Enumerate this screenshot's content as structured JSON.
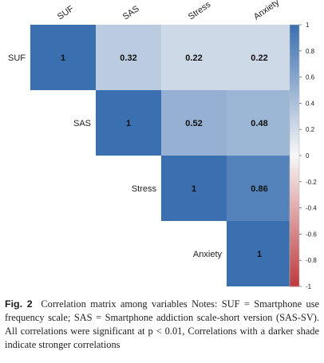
{
  "chart_data": {
    "type": "heatmap",
    "variables": [
      "SUF",
      "SAS",
      "Stress",
      "Anxiety"
    ],
    "layout": "upper-triangle",
    "cells": [
      {
        "row": "SUF",
        "col": "SUF",
        "value": 1,
        "label": "1"
      },
      {
        "row": "SUF",
        "col": "SAS",
        "value": 0.32,
        "label": "0.32"
      },
      {
        "row": "SUF",
        "col": "Stress",
        "value": 0.22,
        "label": "0.22"
      },
      {
        "row": "SUF",
        "col": "Anxiety",
        "value": 0.22,
        "label": "0.22"
      },
      {
        "row": "SAS",
        "col": "SAS",
        "value": 1,
        "label": "1"
      },
      {
        "row": "SAS",
        "col": "Stress",
        "value": 0.52,
        "label": "0.52"
      },
      {
        "row": "SAS",
        "col": "Anxiety",
        "value": 0.48,
        "label": "0.48"
      },
      {
        "row": "Stress",
        "col": "Stress",
        "value": 1,
        "label": "1"
      },
      {
        "row": "Stress",
        "col": "Anxiety",
        "value": 0.86,
        "label": "0.86"
      },
      {
        "row": "Anxiety",
        "col": "Anxiety",
        "value": 1,
        "label": "1"
      }
    ],
    "colorbar": {
      "range": [
        -1,
        1
      ],
      "ticks": [
        "1",
        "0.8",
        "0.6",
        "0.4",
        "0.2",
        "0",
        "-0.2",
        "-0.4",
        "-0.6",
        "-0.8",
        "-1"
      ],
      "colors": {
        "positive": "#3a6fb0",
        "zero": "#f7f7f7",
        "negative": "#c0393b"
      }
    },
    "legend": "right"
  },
  "caption": {
    "label": "Fig. 2",
    "text": "Correlation matrix among variables Notes: SUF = Smartphone use frequency scale; SAS = Smartphone addiction scale-short version (SAS-SV). All correlations were significant at p < 0.01, Correlations with a darker shade indicate stronger correlations"
  }
}
